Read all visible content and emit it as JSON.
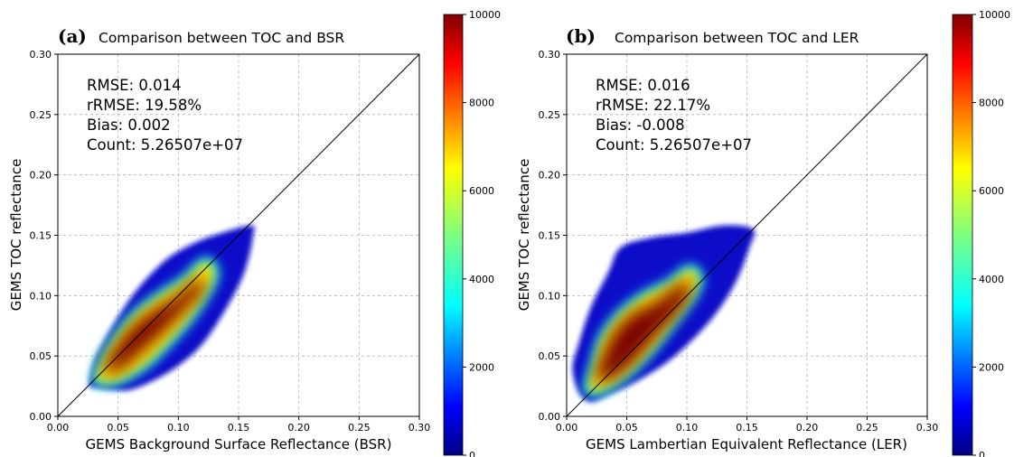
{
  "figure": {
    "panels": [
      {
        "panel_label": "(a)",
        "title": "Comparison between TOC and BSR",
        "stats": [
          "RMSE: 0.014",
          "rRMSE: 19.58%",
          "Bias: 0.002",
          "Count: 5.26507e+07"
        ]
      },
      {
        "panel_label": "(b)",
        "title": "Comparison between TOC and LER",
        "stats": [
          "RMSE: 0.016",
          "rRMSE: 22.17%",
          "Bias: -0.008",
          "Count: 5.26507e+07"
        ]
      }
    ]
  },
  "chart_data": [
    {
      "type": "heatmap",
      "title": "Comparison between TOC and BSR",
      "xlabel": "GEMS Background Surface Reflectance (BSR)",
      "ylabel": "GEMS TOC reflectance",
      "xlim": [
        0.0,
        0.3
      ],
      "ylim": [
        0.0,
        0.3
      ],
      "xticks": [
        "0.00",
        "0.05",
        "0.10",
        "0.15",
        "0.20",
        "0.25",
        "0.30"
      ],
      "yticks": [
        "0.00",
        "0.05",
        "0.10",
        "0.15",
        "0.20",
        "0.25",
        "0.30"
      ],
      "grid": true,
      "one_to_one_line": true,
      "colorbar": {
        "range": [
          0,
          10000
        ],
        "ticks": [
          "0",
          "2000",
          "4000",
          "6000",
          "8000",
          "10000"
        ],
        "colormap": "jet"
      },
      "density_regions": [
        {
          "level": "support",
          "outline": [
            [
              0.026,
              0.026
            ],
            [
              0.03,
              0.045
            ],
            [
              0.04,
              0.065
            ],
            [
              0.055,
              0.09
            ],
            [
              0.07,
              0.11
            ],
            [
              0.09,
              0.13
            ],
            [
              0.11,
              0.142
            ],
            [
              0.13,
              0.15
            ],
            [
              0.16,
              0.158
            ],
            [
              0.162,
              0.15
            ],
            [
              0.155,
              0.12
            ],
            [
              0.14,
              0.09
            ],
            [
              0.12,
              0.06
            ],
            [
              0.1,
              0.042
            ],
            [
              0.08,
              0.03
            ],
            [
              0.06,
              0.022
            ],
            [
              0.045,
              0.022
            ],
            [
              0.03,
              0.024
            ]
          ]
        },
        {
          "level": "core",
          "outline": [
            [
              0.032,
              0.03
            ],
            [
              0.036,
              0.045
            ],
            [
              0.048,
              0.065
            ],
            [
              0.065,
              0.085
            ],
            [
              0.085,
              0.1
            ],
            [
              0.105,
              0.113
            ],
            [
              0.122,
              0.128
            ],
            [
              0.13,
              0.12
            ],
            [
              0.125,
              0.105
            ],
            [
              0.112,
              0.085
            ],
            [
              0.095,
              0.065
            ],
            [
              0.075,
              0.045
            ],
            [
              0.055,
              0.032
            ],
            [
              0.042,
              0.028
            ]
          ]
        },
        {
          "level": "max",
          "outline": [
            [
              0.038,
              0.038
            ],
            [
              0.045,
              0.052
            ],
            [
              0.06,
              0.072
            ],
            [
              0.08,
              0.088
            ],
            [
              0.1,
              0.1
            ],
            [
              0.118,
              0.115
            ],
            [
              0.12,
              0.104
            ],
            [
              0.105,
              0.088
            ],
            [
              0.085,
              0.068
            ],
            [
              0.065,
              0.05
            ],
            [
              0.05,
              0.038
            ]
          ]
        }
      ],
      "stats": {
        "RMSE": 0.014,
        "rRMSE_percent": 19.58,
        "Bias": 0.002,
        "Count": 52650700
      }
    },
    {
      "type": "heatmap",
      "title": "Comparison between TOC and LER",
      "xlabel": "GEMS Lambertian Equivalent Reflectance (LER)",
      "ylabel": "GEMS TOC reflectance",
      "xlim": [
        0.0,
        0.3
      ],
      "ylim": [
        0.0,
        0.3
      ],
      "xticks": [
        "0.00",
        "0.05",
        "0.10",
        "0.15",
        "0.20",
        "0.25",
        "0.30"
      ],
      "yticks": [
        "0.00",
        "0.05",
        "0.10",
        "0.15",
        "0.20",
        "0.25",
        "0.30"
      ],
      "grid": true,
      "one_to_one_line": true,
      "colorbar": {
        "range": [
          0,
          10000
        ],
        "ticks": [
          "0",
          "2000",
          "4000",
          "6000",
          "8000",
          "10000"
        ],
        "colormap": "jet"
      },
      "density_regions": [
        {
          "level": "support",
          "outline": [
            [
              0.005,
              0.04
            ],
            [
              0.01,
              0.06
            ],
            [
              0.02,
              0.09
            ],
            [
              0.035,
              0.12
            ],
            [
              0.045,
              0.14
            ],
            [
              0.07,
              0.148
            ],
            [
              0.1,
              0.152
            ],
            [
              0.13,
              0.158
            ],
            [
              0.155,
              0.155
            ],
            [
              0.152,
              0.14
            ],
            [
              0.14,
              0.11
            ],
            [
              0.12,
              0.08
            ],
            [
              0.09,
              0.05
            ],
            [
              0.06,
              0.03
            ],
            [
              0.035,
              0.018
            ],
            [
              0.02,
              0.012
            ],
            [
              0.01,
              0.02
            ]
          ]
        },
        {
          "level": "core",
          "outline": [
            [
              0.018,
              0.022
            ],
            [
              0.022,
              0.04
            ],
            [
              0.03,
              0.065
            ],
            [
              0.045,
              0.085
            ],
            [
              0.065,
              0.1
            ],
            [
              0.085,
              0.11
            ],
            [
              0.102,
              0.122
            ],
            [
              0.11,
              0.115
            ],
            [
              0.105,
              0.1
            ],
            [
              0.09,
              0.08
            ],
            [
              0.07,
              0.055
            ],
            [
              0.05,
              0.035
            ],
            [
              0.03,
              0.022
            ]
          ]
        },
        {
          "level": "max",
          "outline": [
            [
              0.024,
              0.03
            ],
            [
              0.03,
              0.05
            ],
            [
              0.04,
              0.07
            ],
            [
              0.055,
              0.085
            ],
            [
              0.075,
              0.095
            ],
            [
              0.095,
              0.11
            ],
            [
              0.104,
              0.108
            ],
            [
              0.095,
              0.09
            ],
            [
              0.075,
              0.068
            ],
            [
              0.055,
              0.045
            ],
            [
              0.038,
              0.032
            ]
          ]
        }
      ],
      "stats": {
        "RMSE": 0.016,
        "rRMSE_percent": 22.17,
        "Bias": -0.008,
        "Count": 52650700
      }
    }
  ]
}
